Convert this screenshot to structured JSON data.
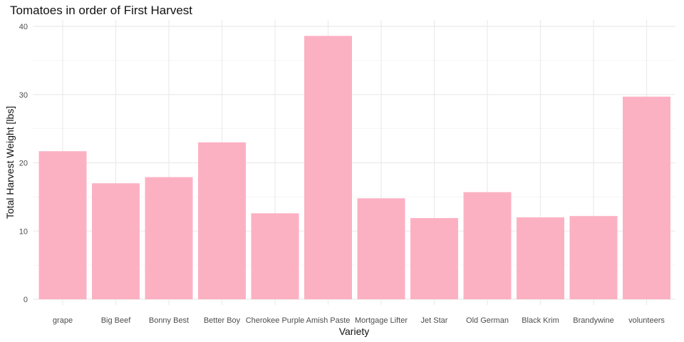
{
  "chart_data": {
    "type": "bar",
    "title": "Tomatoes in order of First Harvest",
    "xlabel": "Variety",
    "ylabel": "Total Harvest Weight [lbs]",
    "categories": [
      "grape",
      "Big Beef",
      "Bonny Best",
      "Better Boy",
      "Cherokee Purple",
      "Amish Paste",
      "Mortgage Lifter",
      "Jet Star",
      "Old German",
      "Black Krim",
      "Brandywine",
      "volunteers"
    ],
    "values": [
      21.7,
      17.0,
      17.9,
      23.0,
      12.6,
      38.6,
      14.8,
      11.9,
      15.7,
      12.0,
      12.2,
      29.7
    ],
    "ylim": [
      0,
      40
    ],
    "yticks": [
      0,
      10,
      20,
      30,
      40
    ],
    "ytick_labels": [
      "0",
      "10",
      "20",
      "30",
      "40"
    ],
    "bar_color": "#FCB1C3",
    "grid": true,
    "legend": "none"
  }
}
